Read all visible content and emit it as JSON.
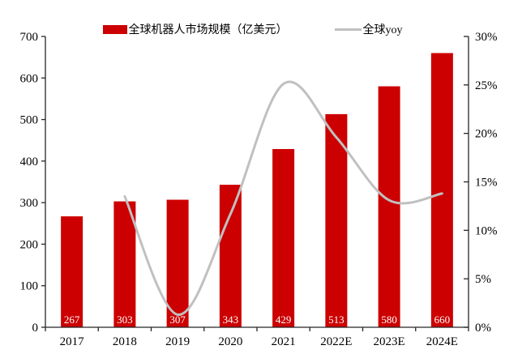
{
  "legend": {
    "market_label": "全球机器人市场规模（亿美元）",
    "yoy_label": "全球yoy"
  },
  "chart_data": {
    "type": "bar+line combo",
    "categories": [
      "2017",
      "2018",
      "2019",
      "2020",
      "2021",
      "2022E",
      "2023E",
      "2024E"
    ],
    "series": [
      {
        "name": "全球机器人市场规模（亿美元）",
        "type": "bar",
        "axis": "left",
        "color": "#CC0000",
        "values": [
          267,
          303,
          307,
          343,
          429,
          513,
          580,
          660
        ],
        "data_labels": true,
        "data_label_color": "#ffffff"
      },
      {
        "name": "全球yoy",
        "type": "line",
        "axis": "right",
        "color": "#C0C0C0",
        "smooth": true,
        "unit": "%",
        "values": [
          null,
          13.5,
          1.3,
          11.7,
          25.1,
          19.6,
          13.1,
          13.8
        ]
      }
    ],
    "left_axis": {
      "min": 0,
      "max": 700,
      "step": 100,
      "tick_labels": [
        "0",
        "100",
        "200",
        "300",
        "400",
        "500",
        "600",
        "700"
      ]
    },
    "right_axis": {
      "min": 0,
      "max": 30,
      "step": 5,
      "tick_labels": [
        "0%",
        "5%",
        "10%",
        "15%",
        "20%",
        "25%",
        "30%"
      ]
    },
    "grid": false,
    "legend_position": "top",
    "axis_color": "#262626",
    "text_color": "#000000"
  }
}
